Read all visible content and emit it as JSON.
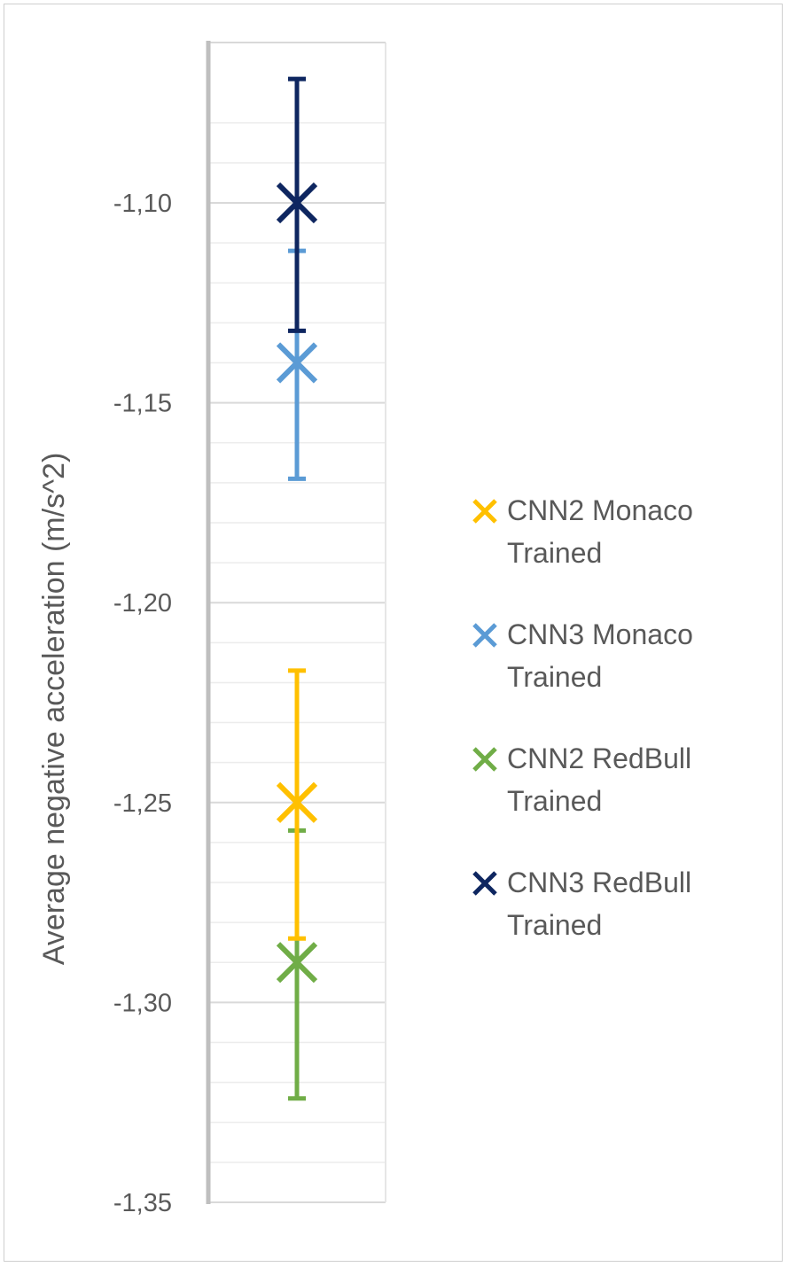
{
  "chart_data": {
    "type": "scatter",
    "ylabel": "Average negative acceleration (m/s^2)",
    "ylim": [
      -1.35,
      -1.07
    ],
    "yticks": [
      -1.1,
      -1.15,
      -1.2,
      -1.25,
      -1.3,
      -1.35
    ],
    "ytick_labels": [
      "-1,10",
      "-1,15",
      "-1,20",
      "-1,25",
      "-1,30",
      "-1,35"
    ],
    "grid": true,
    "legend_position": "right",
    "series": [
      {
        "name": "CNN2 Monaco\nTrained",
        "color": "#FFC000",
        "y": -1.25,
        "err_low": -1.284,
        "err_high": -1.217
      },
      {
        "name": "CNN3 Monaco\nTrained",
        "color": "#5B9BD5",
        "y": -1.14,
        "err_low": -1.169,
        "err_high": -1.112
      },
      {
        "name": "CNN2 RedBull\nTrained",
        "color": "#70AD47",
        "y": -1.29,
        "err_low": -1.324,
        "err_high": -1.257
      },
      {
        "name": "CNN3 RedBull\nTrained",
        "color": "#0E2660",
        "y": -1.1,
        "err_low": -1.132,
        "err_high": -1.069
      }
    ]
  }
}
